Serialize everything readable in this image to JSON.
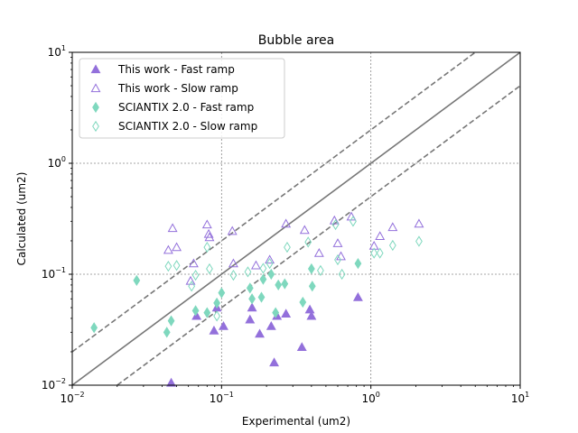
{
  "chart_data": {
    "type": "scatter",
    "title": "Bubble area",
    "xlabel": "Experimental (um2)",
    "ylabel": "Calculated (um2)",
    "xscale": "log",
    "yscale": "log",
    "xlim": [
      0.01,
      10
    ],
    "ylim": [
      0.01,
      10
    ],
    "x_ticks": [
      {
        "base": "10",
        "exp": "−2",
        "value": 0.01
      },
      {
        "base": "10",
        "exp": "−1",
        "value": 0.1
      },
      {
        "base": "10",
        "exp": "0",
        "value": 1
      },
      {
        "base": "10",
        "exp": "1",
        "value": 10
      }
    ],
    "y_ticks": [
      {
        "base": "10",
        "exp": "−2",
        "value": 0.01
      },
      {
        "base": "10",
        "exp": "−1",
        "value": 0.1
      },
      {
        "base": "10",
        "exp": "0",
        "value": 1
      },
      {
        "base": "10",
        "exp": "1",
        "value": 10
      }
    ],
    "grid": "dotted, major ticks",
    "legend_position": "top-left",
    "reference_lines": [
      {
        "style": "solid",
        "factor": 1,
        "color": "#777777"
      },
      {
        "style": "dashed",
        "factor": 2,
        "color": "#777777"
      },
      {
        "style": "dashed",
        "factor": 0.5,
        "color": "#777777"
      }
    ],
    "series": [
      {
        "name": "This work - Fast ramp",
        "marker": "triangle",
        "filled": true,
        "color": "#9370DB",
        "points": [
          [
            0.046,
            0.0105
          ],
          [
            0.068,
            0.042
          ],
          [
            0.089,
            0.031
          ],
          [
            0.093,
            0.05
          ],
          [
            0.103,
            0.034
          ],
          [
            0.155,
            0.039
          ],
          [
            0.16,
            0.05
          ],
          [
            0.18,
            0.029
          ],
          [
            0.215,
            0.034
          ],
          [
            0.225,
            0.016
          ],
          [
            0.235,
            0.042
          ],
          [
            0.27,
            0.044
          ],
          [
            0.345,
            0.022
          ],
          [
            0.39,
            0.048
          ],
          [
            0.4,
            0.042
          ],
          [
            0.82,
            0.062
          ]
        ]
      },
      {
        "name": "This work - Slow ramp",
        "marker": "triangle",
        "filled": false,
        "color": "#9370DB",
        "points": [
          [
            0.044,
            0.165
          ],
          [
            0.047,
            0.26
          ],
          [
            0.05,
            0.175
          ],
          [
            0.062,
            0.087
          ],
          [
            0.065,
            0.125
          ],
          [
            0.08,
            0.28
          ],
          [
            0.082,
            0.23
          ],
          [
            0.083,
            0.215
          ],
          [
            0.118,
            0.245
          ],
          [
            0.12,
            0.125
          ],
          [
            0.17,
            0.12
          ],
          [
            0.21,
            0.135
          ],
          [
            0.27,
            0.285
          ],
          [
            0.36,
            0.25
          ],
          [
            0.45,
            0.155
          ],
          [
            0.57,
            0.305
          ],
          [
            0.6,
            0.19
          ],
          [
            0.63,
            0.145
          ],
          [
            0.74,
            0.33
          ],
          [
            1.05,
            0.18
          ],
          [
            1.15,
            0.22
          ],
          [
            1.4,
            0.265
          ],
          [
            2.1,
            0.285
          ]
        ]
      },
      {
        "name": "SCIANTIX 2.0 - Fast ramp",
        "marker": "diamond",
        "filled": true,
        "color": "#7FD8BE",
        "points": [
          [
            0.014,
            0.033
          ],
          [
            0.027,
            0.088
          ],
          [
            0.043,
            0.03
          ],
          [
            0.046,
            0.038
          ],
          [
            0.067,
            0.047
          ],
          [
            0.08,
            0.045
          ],
          [
            0.093,
            0.055
          ],
          [
            0.1,
            0.068
          ],
          [
            0.155,
            0.075
          ],
          [
            0.16,
            0.06
          ],
          [
            0.185,
            0.062
          ],
          [
            0.19,
            0.09
          ],
          [
            0.215,
            0.1
          ],
          [
            0.23,
            0.045
          ],
          [
            0.24,
            0.08
          ],
          [
            0.265,
            0.082
          ],
          [
            0.35,
            0.056
          ],
          [
            0.4,
            0.112
          ],
          [
            0.405,
            0.078
          ],
          [
            0.82,
            0.125
          ]
        ]
      },
      {
        "name": "SCIANTIX 2.0 - Slow ramp",
        "marker": "diamond",
        "filled": false,
        "color": "#7FD8BE",
        "points": [
          [
            0.044,
            0.118
          ],
          [
            0.05,
            0.12
          ],
          [
            0.063,
            0.078
          ],
          [
            0.067,
            0.098
          ],
          [
            0.08,
            0.175
          ],
          [
            0.083,
            0.112
          ],
          [
            0.093,
            0.042
          ],
          [
            0.12,
            0.098
          ],
          [
            0.15,
            0.105
          ],
          [
            0.19,
            0.113
          ],
          [
            0.21,
            0.125
          ],
          [
            0.275,
            0.175
          ],
          [
            0.38,
            0.195
          ],
          [
            0.46,
            0.108
          ],
          [
            0.58,
            0.28
          ],
          [
            0.6,
            0.135
          ],
          [
            0.64,
            0.1
          ],
          [
            0.76,
            0.3
          ],
          [
            1.05,
            0.155
          ],
          [
            1.15,
            0.155
          ],
          [
            1.4,
            0.182
          ],
          [
            2.1,
            0.198
          ]
        ]
      }
    ]
  }
}
